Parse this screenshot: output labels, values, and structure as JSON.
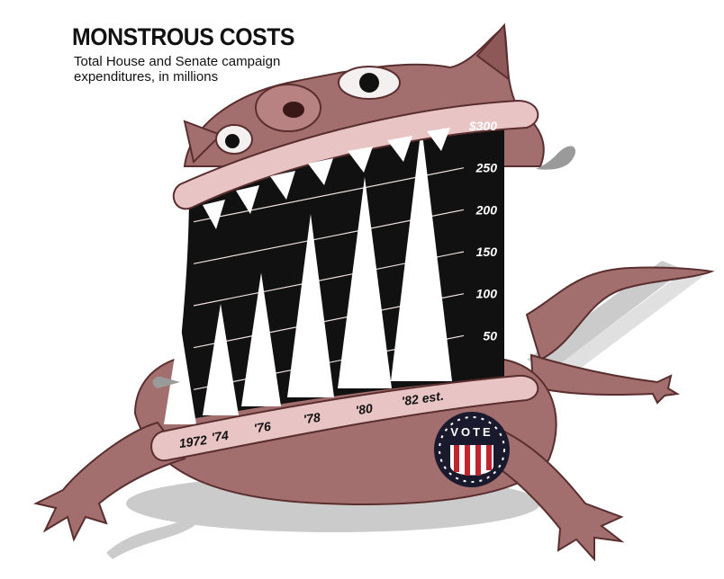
{
  "title": "MONSTROUS COSTS",
  "subtitle": "Total House and Senate campaign expenditures, in millions",
  "vote_badge": "VOTE",
  "colors": {
    "monster_skin": "#a36e6e",
    "monster_skin_dark": "#6b3a3a",
    "mouth_lip": "#e8c4c4",
    "mouth_inside": "#111111",
    "spike": "#ffffff",
    "shadow": "#bcbcbc",
    "badge_red": "#c0262d",
    "badge_navy": "#1a1a2e"
  },
  "chart_data": {
    "type": "area",
    "title": "MONSTROUS COSTS",
    "subtitle": "Total House and Senate campaign expenditures, in millions",
    "categories": [
      "1972",
      "'74",
      "'76",
      "'78",
      "'80",
      "'82 est."
    ],
    "values": [
      66,
      88,
      125,
      195,
      239,
      300
    ],
    "y_ticks": [
      50,
      100,
      150,
      200,
      250
    ],
    "y_tick_labels": [
      "50",
      "100",
      "150",
      "200",
      "250",
      "$300"
    ],
    "top_tick_value": 300,
    "ylim": [
      0,
      300
    ],
    "grid": true,
    "axis_position": "right"
  }
}
